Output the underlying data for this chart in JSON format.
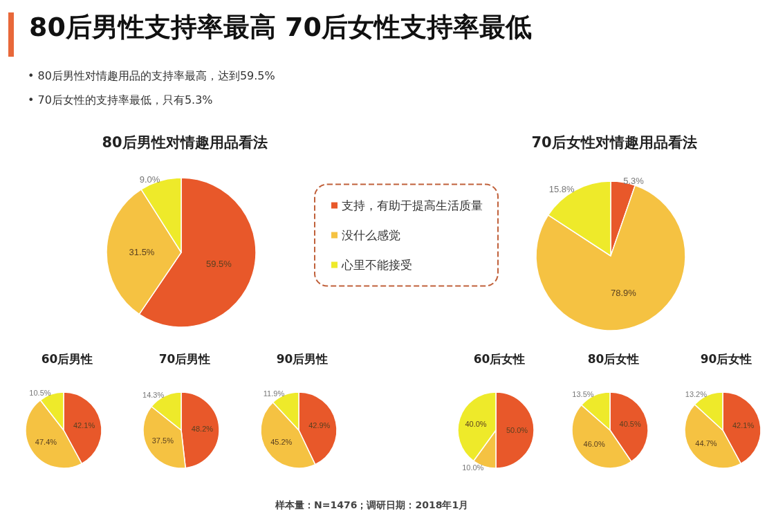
{
  "chart_data": [
    {
      "type": "other",
      "title": "80后男性支持率最高  70后女性支持率最低",
      "annotations": [
        "•  80后男性对情趣用品的支持率最高，达到59.5%",
        "•  70后女性的支持率最低，只有5.3%",
        "样本量：N=1476；调研日期：2018年1月"
      ]
    },
    {
      "type": "pie",
      "title": "80后男性对情趣用品看法",
      "categories": [
        "支持，有助于提高生活质量",
        "没什么感觉",
        "心里不能接受"
      ],
      "values": [
        59.5,
        31.5,
        9.0
      ],
      "colors": [
        "#e8582a",
        "#f5c242",
        "#eeea2a"
      ],
      "value_labels": [
        "59.5%",
        "31.5%",
        "9.0%"
      ],
      "legend": "right"
    },
    {
      "type": "pie",
      "title": "70后女性对情趣用品看法",
      "values": [
        5.3,
        78.9,
        15.8
      ],
      "colors": [
        "#e8582a",
        "#f5c242",
        "#eeea2a"
      ],
      "value_labels": [
        "5.3%",
        "78.9%",
        "15.8%"
      ]
    },
    {
      "type": "pie",
      "title": "60后男性",
      "values": [
        42.1,
        47.4,
        10.5
      ],
      "colors": [
        "#e8582a",
        "#f5c242",
        "#eeea2a"
      ],
      "value_labels": [
        "42.1%",
        "47.4%",
        "10.5%"
      ]
    },
    {
      "type": "pie",
      "title": "70后男性",
      "values": [
        48.2,
        37.5,
        14.3
      ],
      "colors": [
        "#e8582a",
        "#f5c242",
        "#eeea2a"
      ],
      "value_labels": [
        "48.2%",
        "37.5%",
        "14.3%"
      ]
    },
    {
      "type": "pie",
      "title": "90后男性",
      "values": [
        42.9,
        45.2,
        11.9
      ],
      "colors": [
        "#e8582a",
        "#f5c242",
        "#eeea2a"
      ],
      "value_labels": [
        "42.9%",
        "45.2%",
        "11.9%"
      ]
    },
    {
      "type": "pie",
      "title": "60后女性",
      "values": [
        50.0,
        10.0,
        40.0
      ],
      "colors": [
        "#e8582a",
        "#f5c242",
        "#eeea2a"
      ],
      "value_labels": [
        "50.0%",
        "10.0%",
        "40.0%"
      ]
    },
    {
      "type": "pie",
      "title": "80后女性",
      "values": [
        40.5,
        46.0,
        13.5
      ],
      "colors": [
        "#e8582a",
        "#f5c242",
        "#eeea2a"
      ],
      "value_labels": [
        "40.5%",
        "46.0%",
        "13.5%"
      ]
    },
    {
      "type": "pie",
      "title": "90后女性",
      "values": [
        42.1,
        44.7,
        13.2
      ],
      "colors": [
        "#e8582a",
        "#f5c242",
        "#eeea2a"
      ],
      "value_labels": [
        "42.1%",
        "44.7%",
        "13.2%"
      ]
    }
  ]
}
